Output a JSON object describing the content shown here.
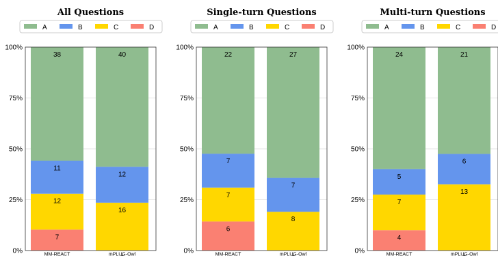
{
  "colors": {
    "A": "#8fbc8f",
    "B": "#6495ed",
    "C": "#ffd700",
    "D": "#fa8072"
  },
  "chart_data": [
    {
      "type": "bar",
      "stacked": true,
      "normalized": true,
      "title": "All Questions",
      "categories": [
        "MM-REACT",
        "mPLUG-Owl"
      ],
      "series": [
        {
          "name": "A",
          "values": [
            38,
            40
          ]
        },
        {
          "name": "B",
          "values": [
            11,
            12
          ]
        },
        {
          "name": "C",
          "values": [
            12,
            16
          ]
        },
        {
          "name": "D",
          "values": [
            7,
            0
          ]
        }
      ],
      "yticks": [
        "0%",
        "25%",
        "50%",
        "75%",
        "100%"
      ],
      "ylim": [
        0,
        100
      ],
      "legend": "top",
      "grid": true
    },
    {
      "type": "bar",
      "stacked": true,
      "normalized": true,
      "title": "Single-turn Questions",
      "categories": [
        "MM-REACT",
        "mPLUG-Owl"
      ],
      "series": [
        {
          "name": "A",
          "values": [
            22,
            27
          ]
        },
        {
          "name": "B",
          "values": [
            7,
            7
          ]
        },
        {
          "name": "C",
          "values": [
            7,
            8
          ]
        },
        {
          "name": "D",
          "values": [
            6,
            0
          ]
        }
      ],
      "yticks": [
        "0%",
        "25%",
        "50%",
        "75%",
        "100%"
      ],
      "ylim": [
        0,
        100
      ],
      "legend": "top",
      "grid": true
    },
    {
      "type": "bar",
      "stacked": true,
      "normalized": true,
      "title": "Multi-turn Questions",
      "categories": [
        "MM-REACT",
        "mPLUG-Owl"
      ],
      "series": [
        {
          "name": "A",
          "values": [
            24,
            21
          ]
        },
        {
          "name": "B",
          "values": [
            5,
            6
          ]
        },
        {
          "name": "C",
          "values": [
            7,
            13
          ]
        },
        {
          "name": "D",
          "values": [
            4,
            0
          ]
        }
      ],
      "yticks": [
        "0%",
        "25%",
        "50%",
        "75%",
        "100%"
      ],
      "ylim": [
        0,
        100
      ],
      "legend": "top",
      "grid": true
    }
  ]
}
